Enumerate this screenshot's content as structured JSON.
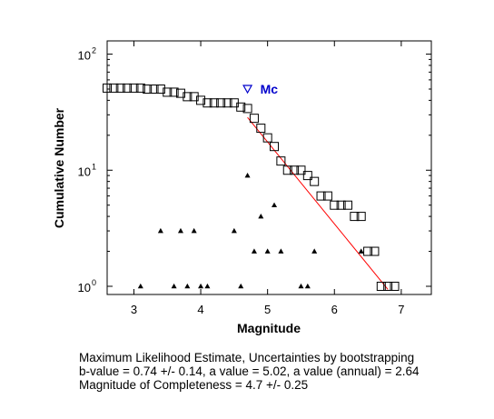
{
  "chart_data": {
    "type": "scatter",
    "xlabel": "Magnitude",
    "ylabel": "Cumulative Number",
    "xlim": [
      2.6,
      7.45
    ],
    "ylim": [
      0.85,
      130
    ],
    "yscale": "log",
    "grid": false,
    "x_ticks": [
      "3",
      "4",
      "5",
      "6",
      "7"
    ],
    "y_ticks": [
      {
        "base": "10",
        "exp": "0"
      },
      {
        "base": "10",
        "exp": "1"
      },
      {
        "base": "10",
        "exp": "2"
      }
    ],
    "series": [
      {
        "marker": "square",
        "x": [
          2.6,
          2.7,
          2.8,
          2.9,
          3.0,
          3.1,
          3.2,
          3.3,
          3.4,
          3.5,
          3.6,
          3.7,
          3.8,
          3.9,
          4.0,
          4.1,
          4.2,
          4.3,
          4.4,
          4.5,
          4.6,
          4.7,
          4.8,
          4.9,
          5.0,
          5.1,
          5.2,
          5.3,
          5.4,
          5.5,
          5.6,
          5.7,
          5.8,
          5.9,
          6.0,
          6.1,
          6.2,
          6.3,
          6.4,
          6.5,
          6.6,
          6.7,
          6.8,
          6.9
        ],
        "y": [
          51,
          51,
          51,
          51,
          51,
          51,
          50,
          50,
          50,
          47,
          47,
          46,
          43,
          43,
          40,
          38,
          38,
          38,
          38,
          38,
          35,
          34,
          28,
          23,
          19,
          16,
          12,
          10,
          10,
          10,
          9,
          8,
          6,
          6,
          5,
          5,
          5,
          4,
          4,
          2,
          2,
          1,
          1,
          1
        ]
      },
      {
        "marker": "triangle",
        "x": [
          3.1,
          3.4,
          3.6,
          3.7,
          3.8,
          3.9,
          4.0,
          4.1,
          4.5,
          4.6,
          4.7,
          4.8,
          4.9,
          5.0,
          5.1,
          5.2,
          5.5,
          5.6,
          5.7,
          6.4
        ],
        "y": [
          1,
          3,
          1,
          3,
          1,
          3,
          1,
          1,
          3,
          1,
          9,
          2,
          4,
          2,
          5,
          2,
          1,
          1,
          2,
          2
        ]
      }
    ],
    "fit_line": {
      "x": [
        4.7,
        6.8
      ],
      "y": [
        28.5,
        0.94
      ],
      "color": "#ff0000"
    },
    "mc_marker": {
      "x": 4.7,
      "y": 50,
      "label": "Mc",
      "color": "#0000cc"
    }
  },
  "caption": {
    "line1": "Maximum Likelihood Estimate, Uncertainties by bootstrapping",
    "line2": "b-value = 0.74 +/- 0.14,  a value = 5.02,  a value (annual) = 2.64",
    "line3": "Magnitude of Completeness = 4.7 +/- 0.25"
  }
}
